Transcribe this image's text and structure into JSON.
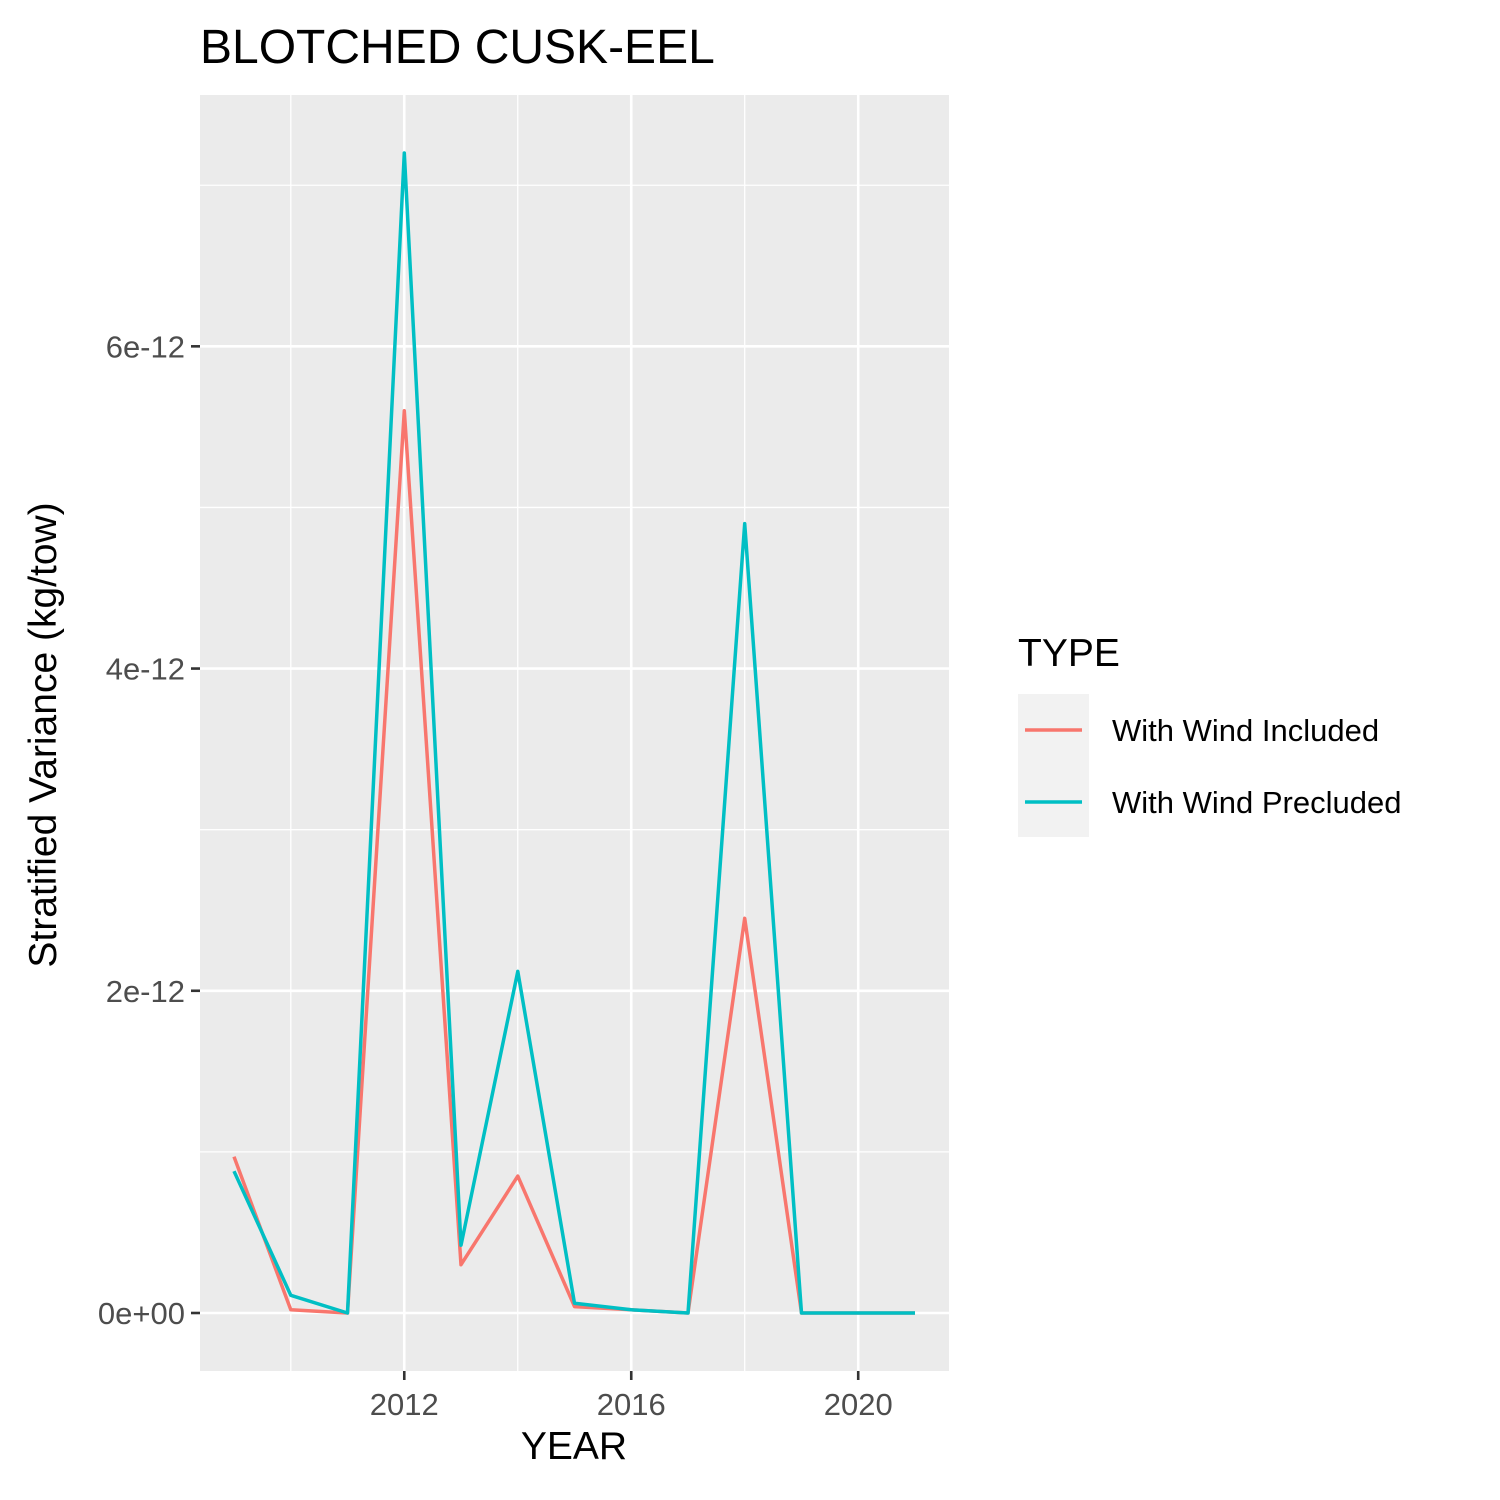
{
  "chart_data": {
    "type": "line",
    "title": "BLOTCHED CUSK-EEL",
    "xlabel": "YEAR",
    "ylabel": "Stratified Variance (kg/tow)",
    "x": [
      2009,
      2010,
      2011,
      2012,
      2013,
      2014,
      2015,
      2016,
      2017,
      2018,
      2019,
      2020,
      2021
    ],
    "xlim": [
      2008.4,
      2021.6
    ],
    "ylim": [
      -3.6e-13,
      7.56e-12
    ],
    "x_ticks": [
      2012,
      2016,
      2020
    ],
    "x_tick_labels": [
      "2012",
      "2016",
      "2020"
    ],
    "y_ticks": [
      0,
      2e-12,
      4e-12,
      6e-12
    ],
    "y_tick_labels": [
      "0e+00",
      "2e-12",
      "4e-12",
      "6e-12"
    ],
    "grid": true,
    "legend": {
      "title": "TYPE",
      "position": "right"
    },
    "series": [
      {
        "name": "With Wind Included",
        "color": "#F8766D",
        "values": [
          9.7e-13,
          2e-14,
          0,
          5.6e-12,
          3e-13,
          8.5e-13,
          4e-14,
          2e-14,
          0,
          2.45e-12,
          0,
          0,
          0
        ]
      },
      {
        "name": "With Wind Precluded",
        "color": "#00BFC4",
        "values": [
          8.8e-13,
          1.1e-13,
          0,
          7.2e-12,
          4.2e-13,
          2.12e-12,
          6e-14,
          2e-14,
          0,
          4.9e-12,
          0,
          0,
          0
        ]
      }
    ]
  }
}
